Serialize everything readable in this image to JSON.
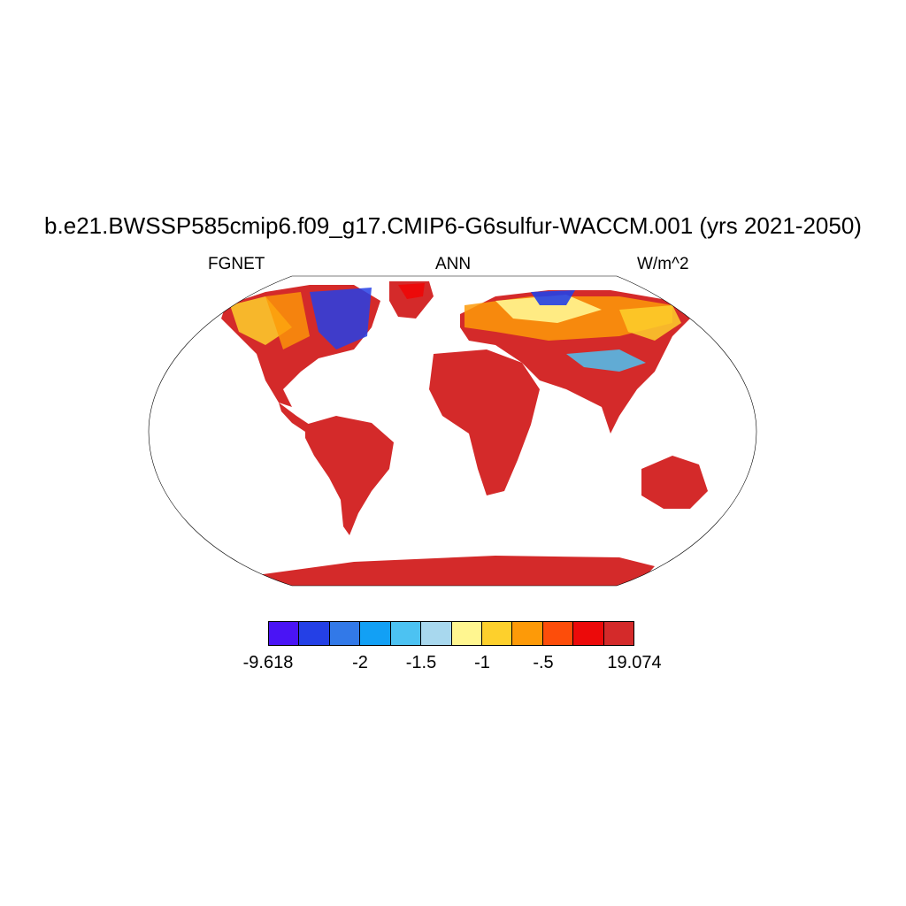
{
  "title": "b.e21.BWSSP585cmip6.f09_g17.CMIP6-G6sulfur-WACCM.001 (yrs 2021-2050)",
  "left_label": "FGNET",
  "center_label": "ANN",
  "right_label": "W/m^2",
  "colorbar": {
    "colors": [
      "#4a14f5",
      "#2440e6",
      "#3279e8",
      "#12a0f5",
      "#4cc2f2",
      "#a8d8ee",
      "#fff690",
      "#fdd02c",
      "#fd9a08",
      "#fd4d0a",
      "#ec0a0a",
      "#d42a2a"
    ],
    "labels": [
      "-9.618",
      "-2",
      "-1.5",
      "-1",
      "-.5",
      "19.074"
    ]
  },
  "map": {
    "projection": "Robinson",
    "land_fill": "#d42a2a",
    "ocean_fill": "#ffffff"
  }
}
